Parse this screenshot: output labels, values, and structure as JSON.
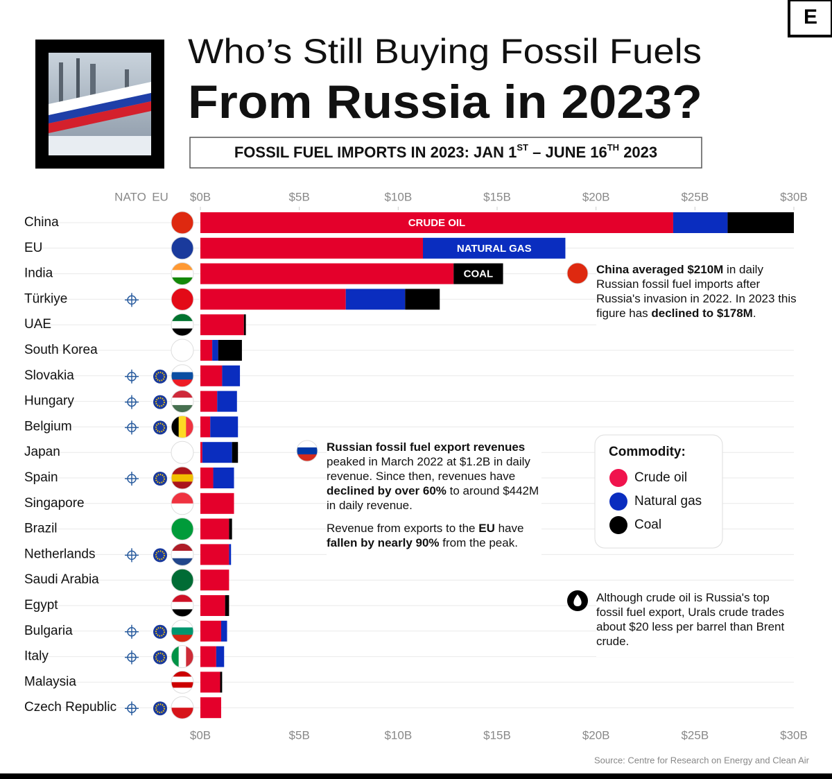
{
  "chart_data": {
    "type": "stacked_barh",
    "title": [
      "Who’s Still Buying Fossil Fuels",
      "From Russia in 2023?"
    ],
    "subtitle": [
      {
        "text": "FOSSIL FUEL IMPORTS IN 2023: JAN 1"
      },
      {
        "text": "ST",
        "sup": true
      },
      {
        "text": " – JUNE 16"
      },
      {
        "text": "TH",
        "sup": true
      },
      {
        "text": " 2023"
      }
    ],
    "logo": "E",
    "column_headers": [
      "NATO",
      "EU"
    ],
    "categories": [
      "China",
      "EU",
      "India",
      "Türkiye",
      "UAE",
      "South Korea",
      "Slovakia",
      "Hungary",
      "Belgium",
      "Japan",
      "Spain",
      "Singapore",
      "Brazil",
      "Netherlands",
      "Saudi Arabia",
      "Egypt",
      "Bulgaria",
      "Italy",
      "Malaysia",
      "Czech Republic"
    ],
    "nato": [
      false,
      false,
      false,
      true,
      false,
      false,
      true,
      true,
      true,
      false,
      true,
      false,
      false,
      true,
      false,
      false,
      true,
      true,
      false,
      true
    ],
    "eu": [
      false,
      false,
      false,
      false,
      false,
      false,
      true,
      true,
      true,
      false,
      true,
      false,
      false,
      true,
      false,
      false,
      true,
      true,
      false,
      true
    ],
    "series": [
      {
        "name": "Crude oil",
        "bar_label": "CRUDE OIL",
        "color": "#e4002b",
        "legend_color": "#f0134d",
        "values": [
          23.9,
          11.25,
          12.8,
          7.35,
          2.2,
          0.6,
          1.1,
          0.85,
          0.5,
          0.1,
          0.65,
          1.7,
          1.45,
          1.45,
          1.45,
          1.25,
          1.05,
          0.8,
          1.0,
          1.05
        ]
      },
      {
        "name": "Natural gas",
        "bar_label": "NATURAL GAS",
        "color": "#0a2dbf",
        "legend_color": "#0a2dbf",
        "values": [
          2.75,
          7.2,
          0,
          3.0,
          0,
          0.3,
          0.9,
          1.0,
          1.4,
          1.5,
          1.05,
          0,
          0,
          0.1,
          0,
          0,
          0.3,
          0.4,
          0,
          0
        ]
      },
      {
        "name": "Coal",
        "bar_label": "COAL",
        "color": "#000000",
        "legend_color": "#000000",
        "values": [
          3.35,
          0,
          2.5,
          1.75,
          0.1,
          1.2,
          0,
          0,
          0,
          0.3,
          0,
          0,
          0.15,
          0,
          0,
          0.2,
          0,
          0,
          0.1,
          0
        ]
      }
    ],
    "xlim": [
      0,
      30
    ],
    "xticks": [
      {
        "value": 0,
        "label": "$0B"
      },
      {
        "value": 5,
        "label": "$5B"
      },
      {
        "value": 10,
        "label": "$10B"
      },
      {
        "value": 15,
        "label": "$15B"
      },
      {
        "value": 20,
        "label": "$20B"
      },
      {
        "value": 25,
        "label": "$25B"
      },
      {
        "value": 30,
        "label": "$30B"
      }
    ],
    "legend_title": "Commodity:",
    "annotations": [
      {
        "paragraphs": [
          [
            {
              "text": "China averaged $210M",
              "bold": true
            },
            {
              "text": " in daily Russian fossil fuel imports after Russia's invasion in 2022. In 2023 this figure has "
            },
            {
              "text": "declined to $178M",
              "bold": true
            },
            {
              "text": "."
            }
          ]
        ]
      },
      {
        "paragraphs": [
          [
            {
              "text": "Russian fossil fuel export revenues",
              "bold": true
            },
            {
              "text": " peaked in March 2022 at $1.2B in daily revenue. Since then, revenues have "
            },
            {
              "text": "declined by over 60%",
              "bold": true
            },
            {
              "text": " to around $442M in daily revenue."
            }
          ],
          [
            {
              "text": "Revenue from exports to the "
            },
            {
              "text": "EU",
              "bold": true
            },
            {
              "text": " have "
            },
            {
              "text": "fallen by nearly 90%",
              "bold": true
            },
            {
              "text": " from the peak."
            }
          ]
        ]
      },
      {
        "paragraphs": [
          [
            {
              "text": "Although crude oil is Russia's top fossil fuel export, Urals crude trades about $20 less per barrel than Brent crude."
            }
          ]
        ]
      }
    ],
    "source": "Source: Centre for Research on Energy and Clean Air"
  }
}
